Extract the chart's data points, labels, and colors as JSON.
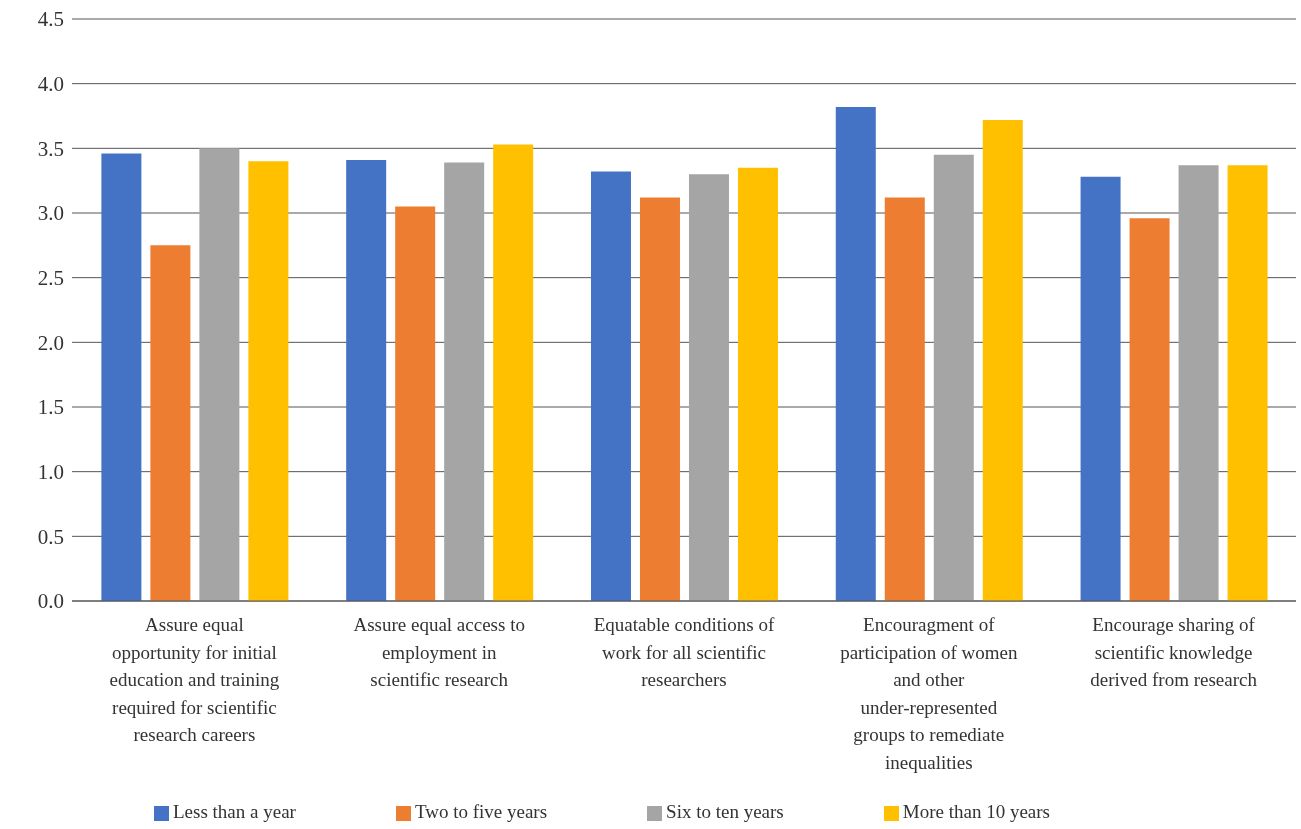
{
  "chart_data": {
    "type": "bar",
    "categories": [
      "Assure equal opportunity for initial education and training required for scientific research careers",
      "Assure equal access to employment in scientific research",
      "Equatable conditions of work for all scientific researchers",
      "Encouragment of participation of women and other under-represented groups to remediate inequalities",
      "Encourage sharing of scientific knowledge derived from research"
    ],
    "series": [
      {
        "name": "Less than a year",
        "color": "#4472c4",
        "values": [
          3.46,
          3.41,
          3.32,
          3.82,
          3.28
        ]
      },
      {
        "name": "Two to five years",
        "color": "#ed7d31",
        "values": [
          2.75,
          3.05,
          3.12,
          3.12,
          2.96
        ]
      },
      {
        "name": "Six to ten years",
        "color": "#a5a5a5",
        "values": [
          3.5,
          3.39,
          3.3,
          3.45,
          3.37
        ]
      },
      {
        "name": "More than 10 years",
        "color": "#ffc000",
        "values": [
          3.4,
          3.53,
          3.35,
          3.72,
          3.37
        ]
      }
    ],
    "ylim": [
      0,
      4.5
    ],
    "yticks": [
      {
        "value": 0,
        "label": "0.0"
      },
      {
        "value": 0.5,
        "label": "0.5"
      },
      {
        "value": 1,
        "label": "1.0"
      },
      {
        "value": 1.5,
        "label": "1.5"
      },
      {
        "value": 2,
        "label": "2.0"
      },
      {
        "value": 2.5,
        "label": "2.5"
      },
      {
        "value": 3,
        "label": "3.0"
      },
      {
        "value": 3.5,
        "label": "3.5"
      },
      {
        "value": 4,
        "label": "4.0"
      },
      {
        "value": 4.5,
        "label": "4.5"
      }
    ],
    "grid": "y",
    "legend": "bottom"
  }
}
